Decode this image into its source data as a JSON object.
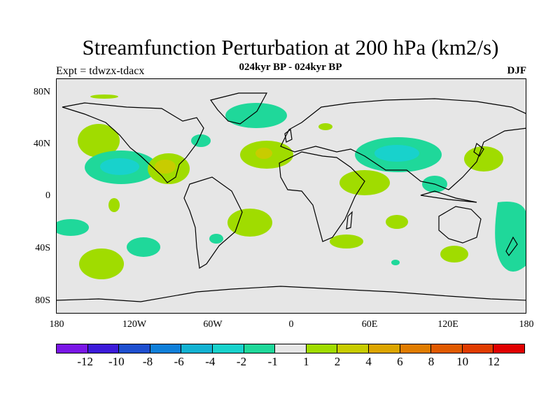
{
  "title": "Streamfunction Perturbation at 200 hPa (km2/s)",
  "subtitle": "024kyr BP - 024kyr BP",
  "left_label": "Expt = tdwzx-tdacx",
  "right_label": "DJF",
  "lat_labels": [
    "80N",
    "40N",
    "0",
    "40S",
    "80S"
  ],
  "lon_labels": [
    "180",
    "120W",
    "60W",
    "0",
    "60E",
    "120E",
    "180"
  ],
  "colorbar": {
    "colors": [
      "#7a16e6",
      "#3c1ad9",
      "#1e4fcf",
      "#0f7fd9",
      "#12b2d2",
      "#18d2cc",
      "#1fd89a",
      "#e6e6e6",
      "#a0dc00",
      "#c8cc00",
      "#dca500",
      "#e07c00",
      "#e05a00",
      "#e03c00",
      "#e00000"
    ],
    "labels": [
      "-12",
      "-10",
      "-8",
      "-6",
      "-4",
      "-2",
      "-1",
      "1",
      "2",
      "4",
      "6",
      "8",
      "10",
      "12"
    ]
  },
  "anomaly_colors": {
    "green": "#1fd89a",
    "cyan": "#18d2cc",
    "lime": "#a0dc00",
    "olive": "#c8cc00",
    "land_outline": "#000000",
    "background": "#e6e6e6"
  }
}
